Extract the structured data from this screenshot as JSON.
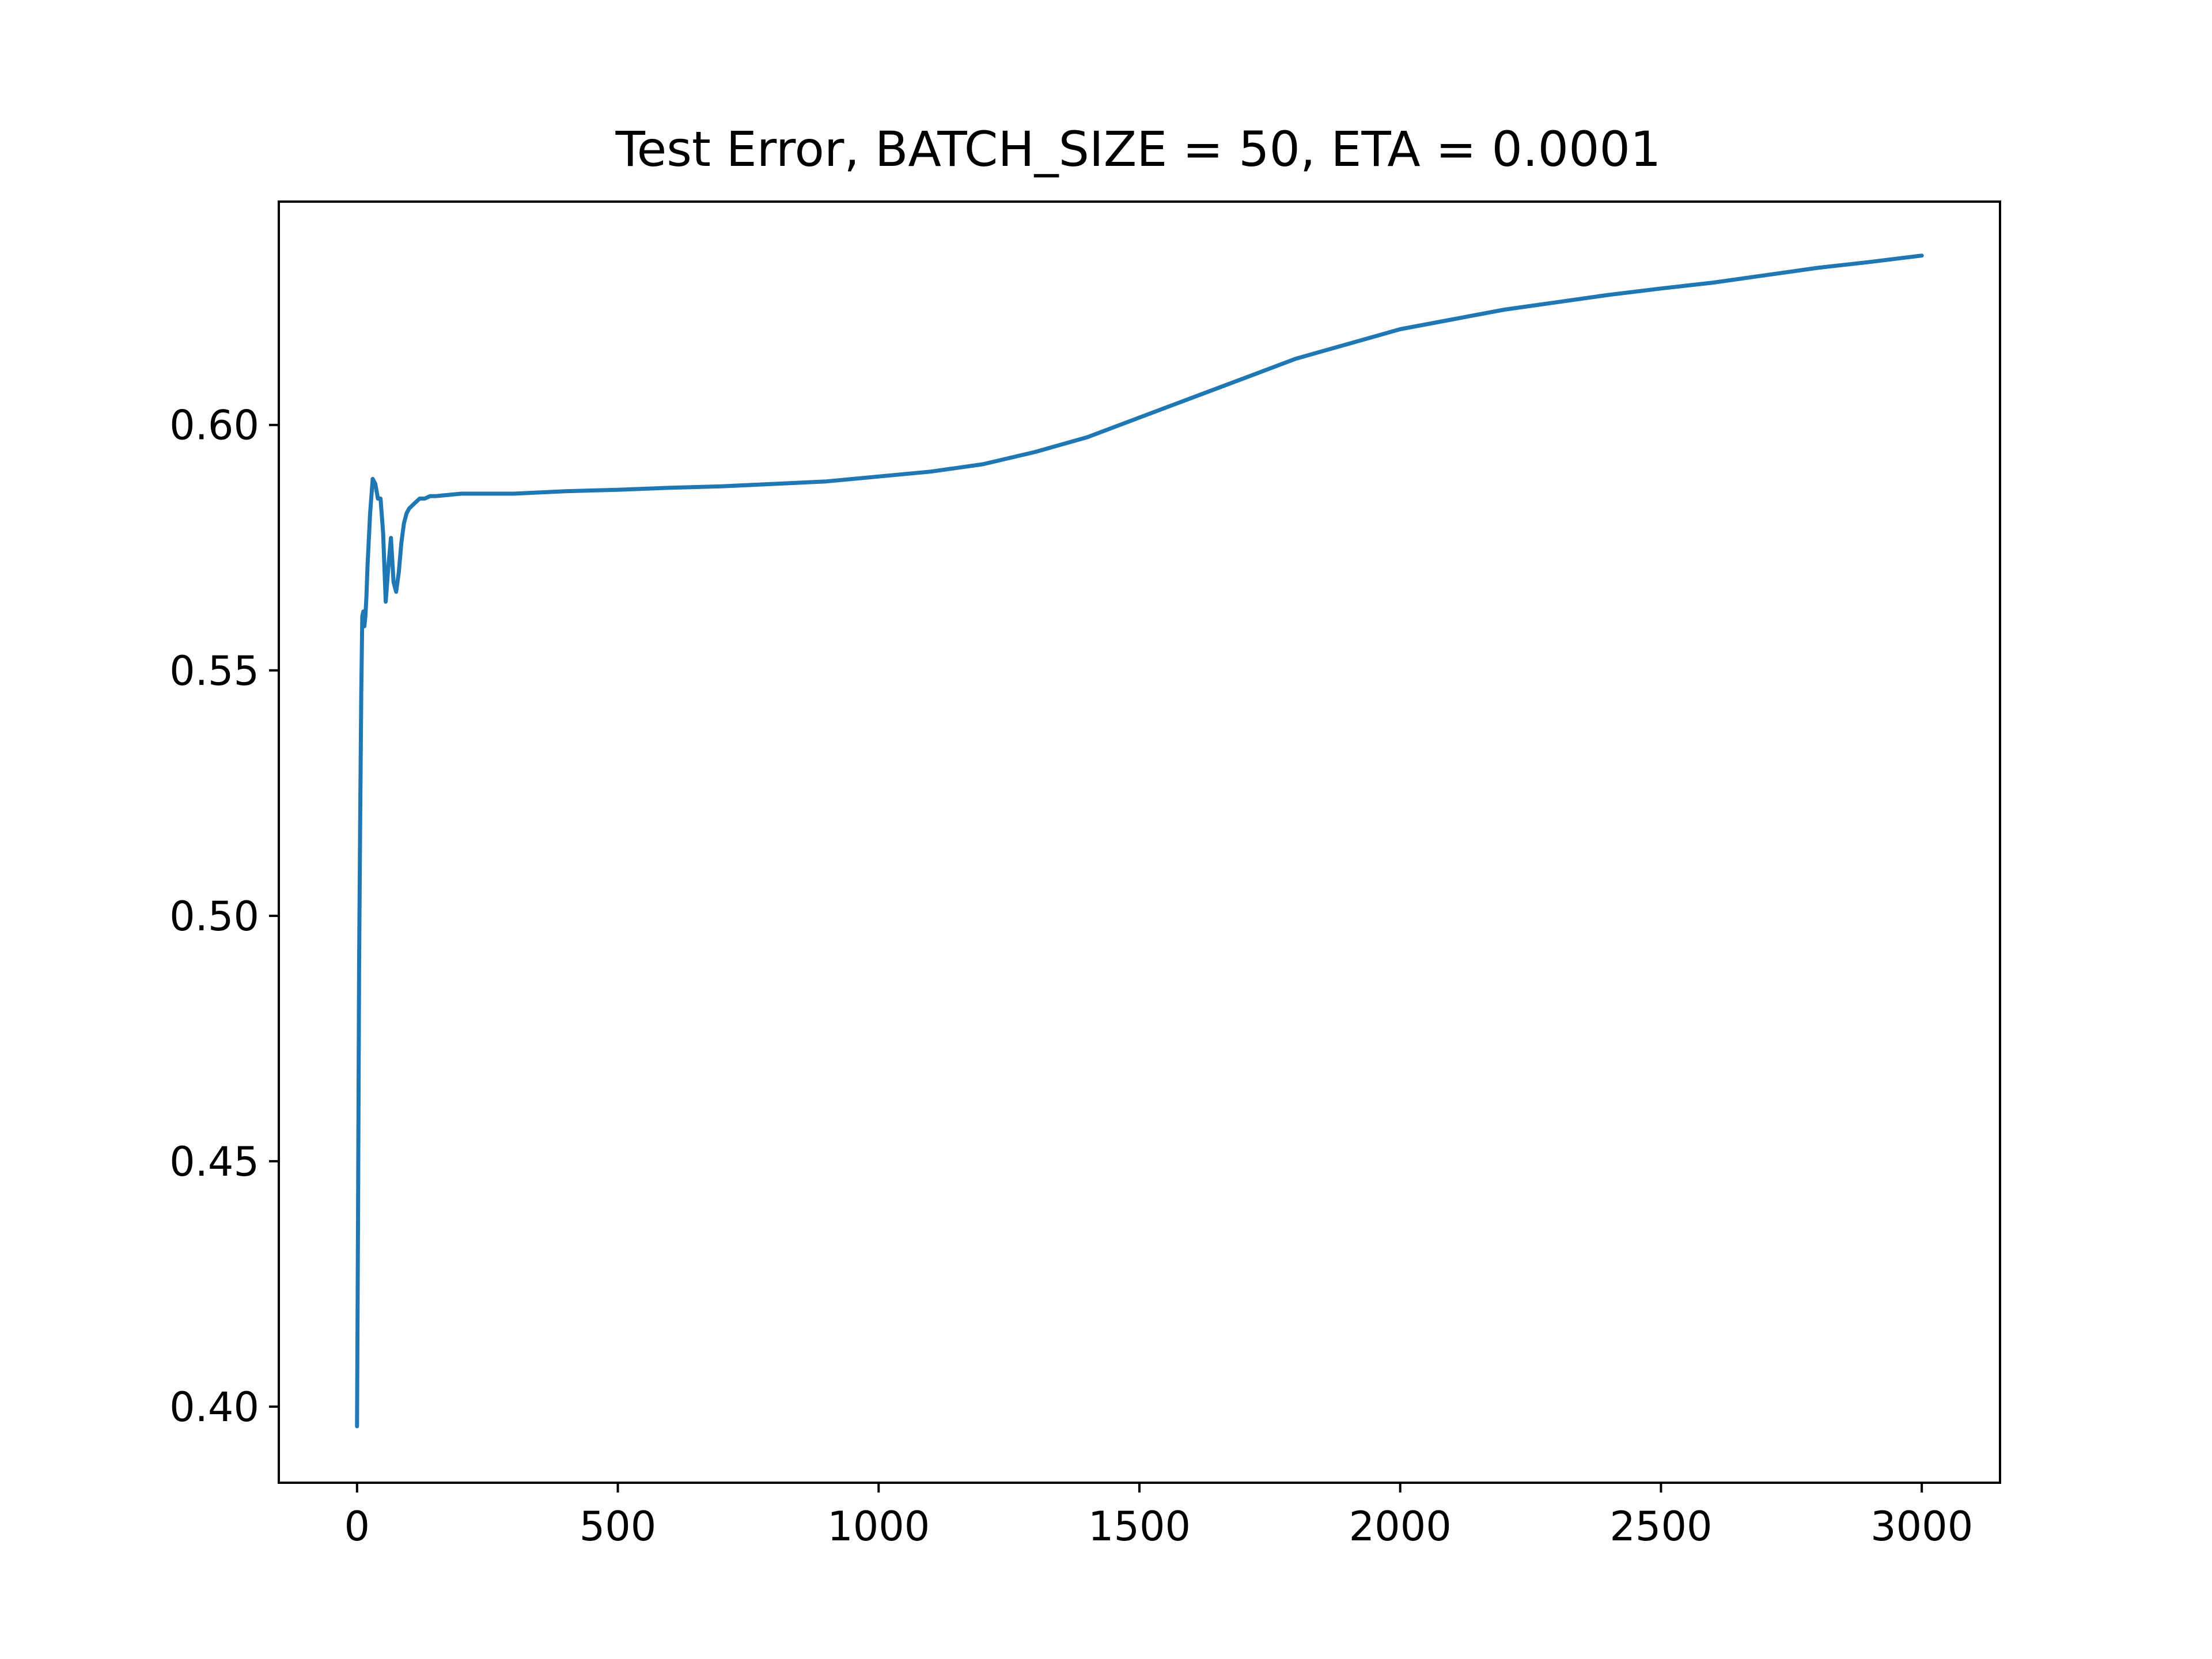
{
  "chart_data": {
    "type": "line",
    "title": "Test Error, BATCH_SIZE = 50, ETA = 0.0001",
    "xlabel": "",
    "ylabel": "",
    "xlim": [
      -150,
      3150
    ],
    "ylim": [
      0.3845,
      0.6455
    ],
    "x_ticks": [
      0,
      500,
      1000,
      1500,
      2000,
      2500,
      3000
    ],
    "x_tick_labels": [
      "0",
      "500",
      "1000",
      "1500",
      "2000",
      "2500",
      "3000"
    ],
    "y_ticks": [
      0.4,
      0.45,
      0.5,
      0.55,
      0.6
    ],
    "y_tick_labels": [
      "0.40",
      "0.45",
      "0.50",
      "0.55",
      "0.60"
    ],
    "grid": false,
    "legend": "none",
    "series": [
      {
        "color": "#1f77b4",
        "x": [
          0,
          2,
          4,
          6,
          8,
          10,
          12,
          14,
          16,
          18,
          20,
          25,
          30,
          35,
          40,
          45,
          50,
          55,
          60,
          65,
          70,
          75,
          80,
          85,
          90,
          95,
          100,
          110,
          120,
          130,
          140,
          150,
          200,
          250,
          300,
          400,
          500,
          600,
          700,
          800,
          900,
          1000,
          1100,
          1200,
          1300,
          1400,
          1500,
          1600,
          1700,
          1800,
          1900,
          2000,
          2100,
          2200,
          2300,
          2400,
          2500,
          2600,
          2700,
          2800,
          2900,
          3000
        ],
        "y": [
          0.396,
          0.44,
          0.49,
          0.52,
          0.545,
          0.561,
          0.562,
          0.559,
          0.561,
          0.565,
          0.571,
          0.582,
          0.589,
          0.588,
          0.585,
          0.585,
          0.578,
          0.564,
          0.571,
          0.577,
          0.568,
          0.566,
          0.57,
          0.576,
          0.58,
          0.582,
          0.583,
          0.584,
          0.585,
          0.585,
          0.5855,
          0.5855,
          0.586,
          0.586,
          0.586,
          0.5865,
          0.5868,
          0.5872,
          0.5875,
          0.588,
          0.5885,
          0.5895,
          0.5905,
          0.592,
          0.5945,
          0.5975,
          0.6015,
          0.6055,
          0.6095,
          0.6135,
          0.6165,
          0.6195,
          0.6215,
          0.6235,
          0.625,
          0.6265,
          0.6278,
          0.629,
          0.6305,
          0.632,
          0.6332,
          0.6345
        ]
      }
    ]
  }
}
